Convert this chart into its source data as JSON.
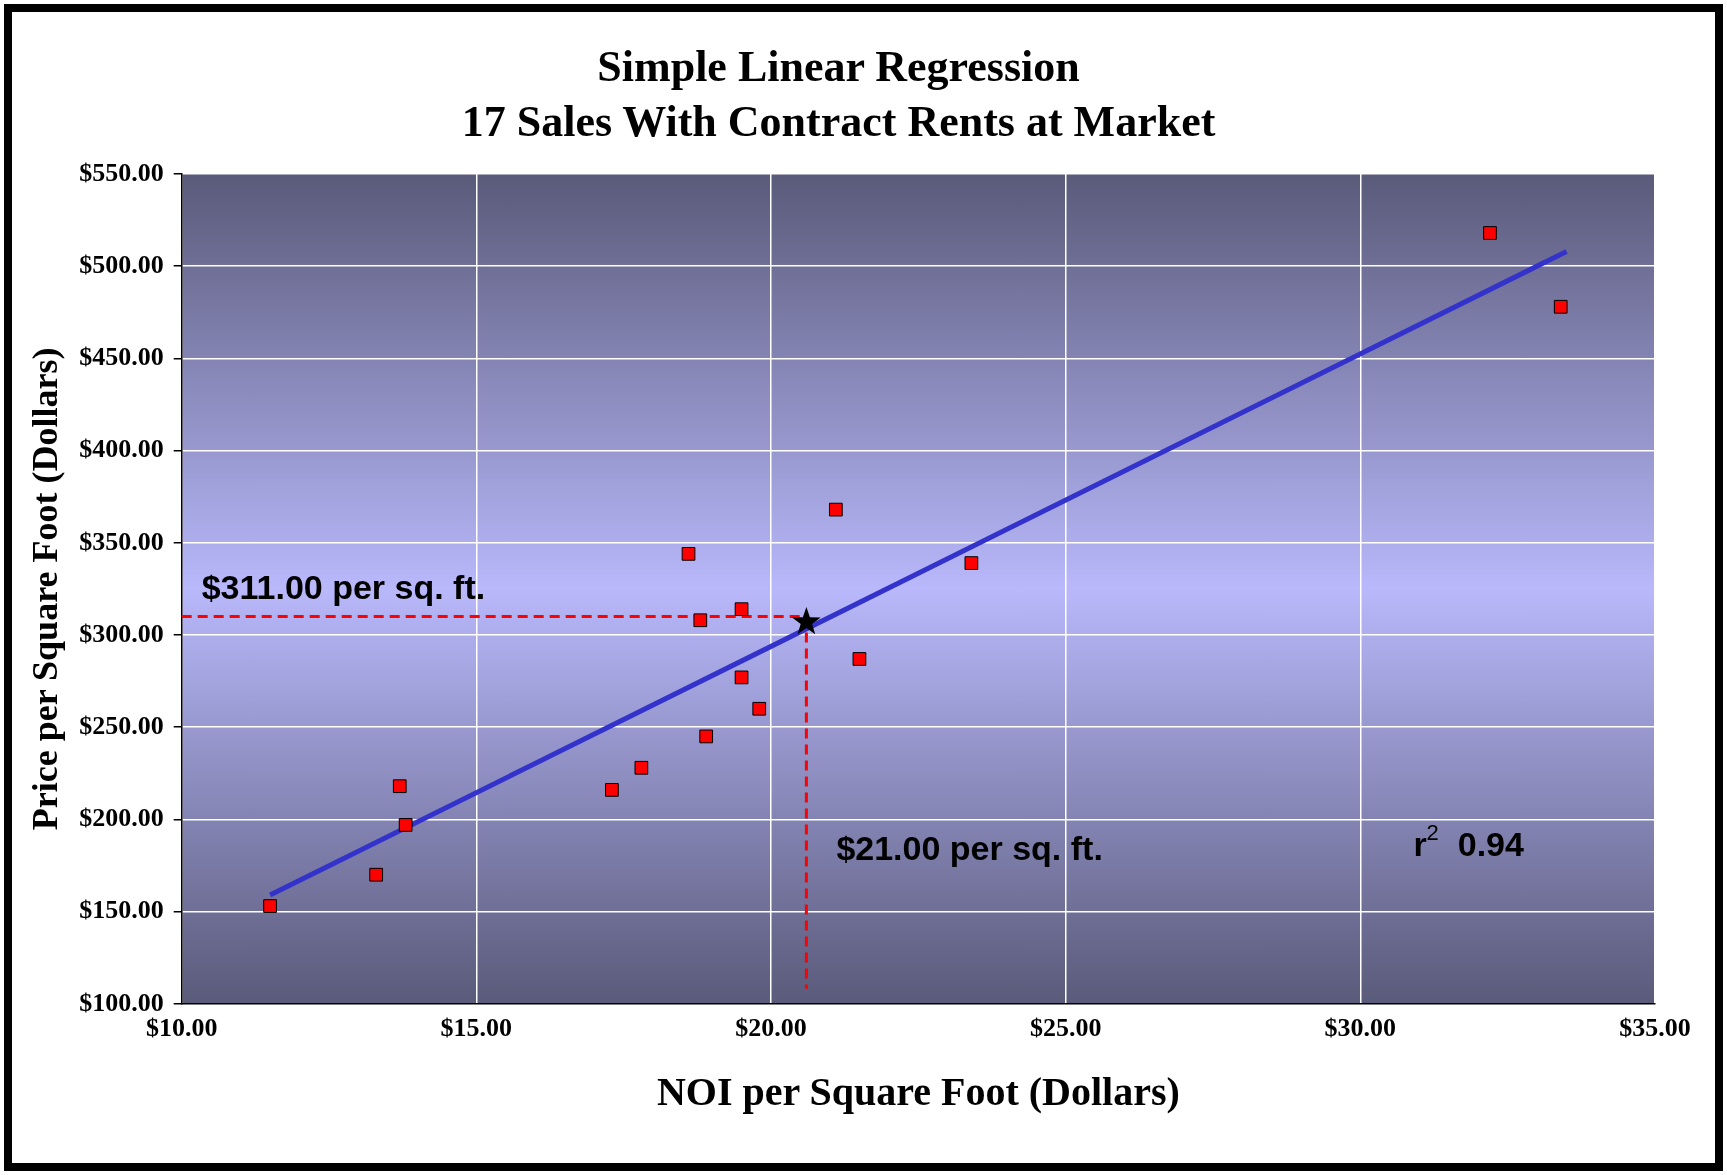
{
  "chart_data": {
    "type": "scatter",
    "title": "Simple Linear Regression",
    "subtitle": "17 Sales With Contract Rents at Market",
    "xlabel": "NOI per Square Foot (Dollars)",
    "ylabel": "Price per Square Foot (Dollars)",
    "xlim": [
      10,
      35
    ],
    "xticks": [
      {
        "value": 10,
        "label": "$10.00"
      },
      {
        "value": 15,
        "label": "$15.00"
      },
      {
        "value": 20,
        "label": "$20.00"
      },
      {
        "value": 25,
        "label": "$25.00"
      },
      {
        "value": 30,
        "label": "$30.00"
      },
      {
        "value": 35,
        "label": "$35.00"
      }
    ],
    "ylim": [
      100,
      550
    ],
    "yticks": [
      {
        "value": 100,
        "label": "$100.00"
      },
      {
        "value": 150,
        "label": "$150.00"
      },
      {
        "value": 200,
        "label": "$200.00"
      },
      {
        "value": 250,
        "label": "$250.00"
      },
      {
        "value": 300,
        "label": "$300.00"
      },
      {
        "value": 350,
        "label": "$350.00"
      },
      {
        "value": 400,
        "label": "$400.00"
      },
      {
        "value": 450,
        "label": "$450.00"
      },
      {
        "value": 500,
        "label": "$500.00"
      },
      {
        "value": 550,
        "label": "$550.00"
      }
    ],
    "grid": true,
    "legend": false,
    "series": [
      {
        "type": "scatter",
        "marker": "square",
        "color": "#ff0000",
        "x": [
          11.5,
          13.3,
          13.7,
          13.8,
          17.3,
          17.8,
          18.6,
          18.8,
          18.9,
          19.5,
          19.5,
          19.8,
          21.1,
          21.5,
          23.4,
          32.2,
          33.4
        ],
        "values": [
          153,
          170,
          218,
          197,
          216,
          228,
          344,
          308,
          245,
          314,
          277,
          260,
          368,
          287,
          339,
          518,
          478
        ]
      },
      {
        "type": "line",
        "marker": "none",
        "color": "#3333cc",
        "x": [
          11.5,
          33.5
        ],
        "values": [
          159,
          508
        ]
      },
      {
        "type": "scatter",
        "marker": "star",
        "color": "#000000",
        "x": [
          20.6
        ],
        "values": [
          307
        ]
      }
    ],
    "ref_lines": [
      {
        "axis": "y",
        "value": 310,
        "label": "$311.00 per sq. ft.",
        "color": "#ff0000",
        "line_style": "dashed"
      },
      {
        "axis": "x",
        "value": 20.6,
        "label": "$21.00 per sq. ft.",
        "color": "#ff0000",
        "line_style": "dashed"
      }
    ],
    "annotations": [
      "r$^{2}$  0.94"
    ]
  }
}
